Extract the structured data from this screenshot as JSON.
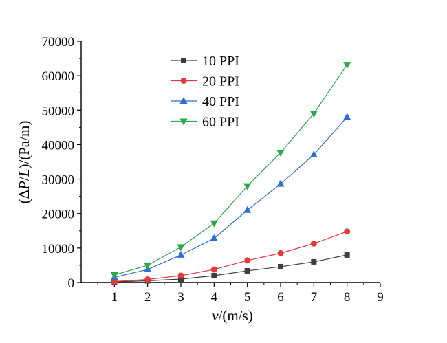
{
  "chart_data": {
    "type": "line",
    "xlabel": {
      "italic": "v",
      "rest": "/(m/s)"
    },
    "ylabel": {
      "pre": "(Δ",
      "italic1": "P",
      "mid": "/",
      "italic2": "L",
      "post": ")/(Pa/m)"
    },
    "xlim": [
      0,
      9
    ],
    "ylim": [
      0,
      70000
    ],
    "xticks": [
      1,
      2,
      3,
      4,
      5,
      6,
      7,
      8,
      9
    ],
    "yticks": [
      0,
      10000,
      20000,
      30000,
      40000,
      50000,
      60000,
      70000
    ],
    "grid": false,
    "legend": "top-center",
    "x": [
      1,
      2,
      3,
      4,
      5,
      6,
      7,
      8
    ],
    "series": [
      {
        "name": "10 PPI",
        "color": "#3d3d3d",
        "marker": "square",
        "values": [
          200,
          500,
          1000,
          2000,
          3400,
          4600,
          6000,
          8000
        ]
      },
      {
        "name": "20 PPI",
        "color": "#e8393a",
        "marker": "circle",
        "values": [
          300,
          900,
          2000,
          3800,
          6400,
          8500,
          11300,
          14800
        ]
      },
      {
        "name": "40 PPI",
        "color": "#2a6ed6",
        "marker": "triangle-up",
        "values": [
          1500,
          3800,
          8000,
          12800,
          21000,
          28600,
          37100,
          48000
        ]
      },
      {
        "name": "60 PPI",
        "color": "#2aa84a",
        "marker": "triangle-down",
        "values": [
          2200,
          5000,
          10300,
          17200,
          28000,
          37700,
          49000,
          63200
        ]
      }
    ]
  }
}
